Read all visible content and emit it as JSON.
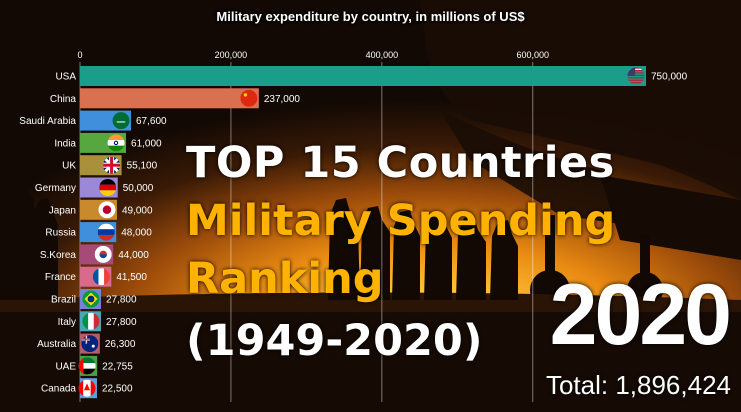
{
  "chart_data": {
    "type": "bar",
    "orientation": "horizontal",
    "title": "Military expenditure by country, in millions of US$",
    "xlim": [
      0,
      750000
    ],
    "xticks": [
      0,
      200000,
      400000,
      600000
    ],
    "xtick_labels": [
      "0",
      "200,000",
      "400,000",
      "600,000"
    ],
    "grid": true,
    "categories": [
      "USA",
      "China",
      "Saudi Arabia",
      "India",
      "UK",
      "Germany",
      "Japan",
      "Russia",
      "S.Korea",
      "France",
      "Brazil",
      "Italy",
      "Australia",
      "UAE",
      "Canada"
    ],
    "values": [
      750000,
      237000,
      67600,
      61000,
      55100,
      50000,
      49000,
      48000,
      44000,
      41500,
      27800,
      27800,
      26300,
      22755,
      22500
    ],
    "value_labels": [
      "750,000",
      "237,000",
      "67,600",
      "61,000",
      "55,100",
      "50,000",
      "49,000",
      "48,000",
      "44,000",
      "41,500",
      "27,800",
      "27,800",
      "26,300",
      "22,755",
      "22,500"
    ],
    "colors": [
      "#1a9e8a",
      "#d9704f",
      "#3f8fdc",
      "#58a63f",
      "#a8913a",
      "#9b88d6",
      "#c98a2e",
      "#3f8fdc",
      "#a64a7a",
      "#d86a8c",
      "#7a7fd8",
      "#4da5b5",
      "#b55e6a",
      "#4f9f42",
      "#5f9ed9"
    ],
    "flag_icons": [
      "flag-usa-icon",
      "flag-china-icon",
      "flag-saudi-arabia-icon",
      "flag-india-icon",
      "flag-uk-icon",
      "flag-germany-icon",
      "flag-japan-icon",
      "flag-russia-icon",
      "flag-south-korea-icon",
      "flag-france-icon",
      "flag-brazil-icon",
      "flag-italy-icon",
      "flag-australia-icon",
      "flag-uae-icon",
      "flag-canada-icon"
    ]
  },
  "overlay": {
    "line1": "TOP 15 Countries",
    "line2": "Military Spending",
    "line3": "Ranking",
    "line4": "(1949-2020)",
    "year": "2020",
    "total": "Total: 1,896,424"
  },
  "colors": {
    "highlight": "#ffb300",
    "text": "#ffffff"
  }
}
